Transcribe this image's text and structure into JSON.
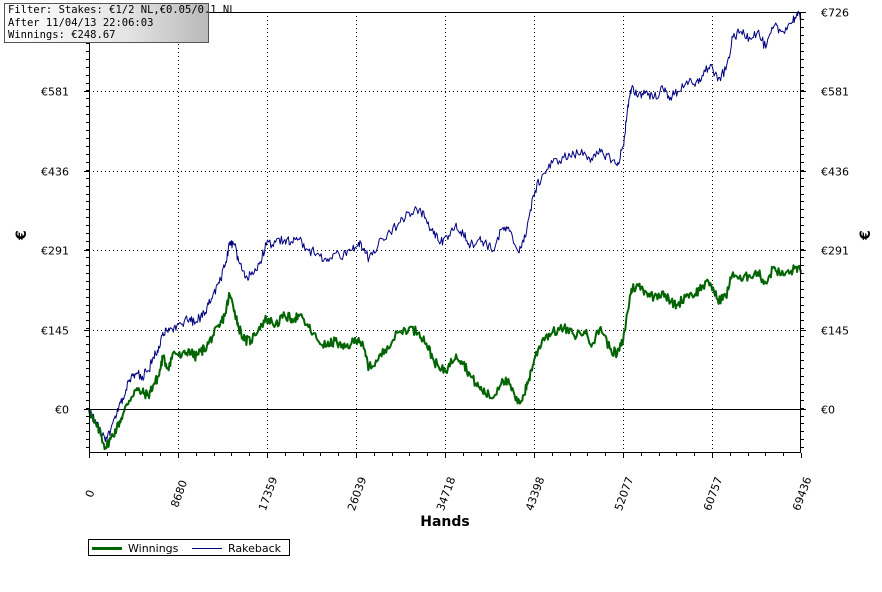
{
  "info_box": {
    "lines": [
      "Filter: Stakes: €1/2 NL,€0.05/0.1 NL",
      "After 11/04/13 22:06:03",
      "Winnings: €248.67"
    ]
  },
  "colors": {
    "winnings": "#006400",
    "rakeback": "#000080",
    "grid": "#000000",
    "frame": "#000000"
  },
  "chart_data": {
    "type": "line",
    "xlabel": "Hands",
    "ylabel": "€",
    "xlim": [
      0,
      69436
    ],
    "ylim": [
      -80,
      726
    ],
    "x_ticks": [
      0,
      8680,
      17359,
      26039,
      34718,
      43398,
      52077,
      60757,
      69436
    ],
    "x_tick_labels": [
      "0",
      "8680",
      "17359",
      "26039",
      "34718",
      "43398",
      "52077",
      "60757",
      "69436"
    ],
    "y_ticks": [
      0,
      145,
      291,
      436,
      581,
      726
    ],
    "y_tick_labels": [
      "€0",
      "€145",
      "€291",
      "€436",
      "€581",
      "€726"
    ],
    "grid": true,
    "legend_position": "bottom-left",
    "series": [
      {
        "name": "Winnings",
        "color": "#006400",
        "points": [
          [
            0,
            0
          ],
          [
            500,
            -25
          ],
          [
            1000,
            -40
          ],
          [
            1600,
            -70
          ],
          [
            2100,
            -55
          ],
          [
            2700,
            -35
          ],
          [
            3300,
            -10
          ],
          [
            3900,
            15
          ],
          [
            4500,
            35
          ],
          [
            5200,
            30
          ],
          [
            5800,
            25
          ],
          [
            6300,
            45
          ],
          [
            6800,
            60
          ],
          [
            7200,
            95
          ],
          [
            7700,
            75
          ],
          [
            8300,
            105
          ],
          [
            9000,
            95
          ],
          [
            9800,
            108
          ],
          [
            10300,
            95
          ],
          [
            10900,
            105
          ],
          [
            11500,
            115
          ],
          [
            12100,
            135
          ],
          [
            12700,
            150
          ],
          [
            13300,
            175
          ],
          [
            13700,
            210
          ],
          [
            14200,
            180
          ],
          [
            14600,
            150
          ],
          [
            15200,
            125
          ],
          [
            15800,
            125
          ],
          [
            16600,
            150
          ],
          [
            17300,
            165
          ],
          [
            18200,
            155
          ],
          [
            19100,
            170
          ],
          [
            19800,
            165
          ],
          [
            20500,
            170
          ],
          [
            21400,
            150
          ],
          [
            22300,
            125
          ],
          [
            23200,
            115
          ],
          [
            24000,
            125
          ],
          [
            24800,
            110
          ],
          [
            25600,
            120
          ],
          [
            26300,
            130
          ],
          [
            26800,
            110
          ],
          [
            27300,
            75
          ],
          [
            28200,
            90
          ],
          [
            29100,
            115
          ],
          [
            30200,
            140
          ],
          [
            31200,
            148
          ],
          [
            32200,
            140
          ],
          [
            32900,
            120
          ],
          [
            33600,
            90
          ],
          [
            34300,
            70
          ],
          [
            35000,
            75
          ],
          [
            35800,
            100
          ],
          [
            36500,
            85
          ],
          [
            37200,
            60
          ],
          [
            38000,
            40
          ],
          [
            38600,
            30
          ],
          [
            39400,
            20
          ],
          [
            40300,
            55
          ],
          [
            41000,
            45
          ],
          [
            41800,
            10
          ],
          [
            42400,
            25
          ],
          [
            42900,
            55
          ],
          [
            43500,
            95
          ],
          [
            44300,
            130
          ],
          [
            45200,
            140
          ],
          [
            46300,
            148
          ],
          [
            47300,
            135
          ],
          [
            48300,
            142
          ],
          [
            49100,
            120
          ],
          [
            49900,
            150
          ],
          [
            50800,
            110
          ],
          [
            51500,
            100
          ],
          [
            52100,
            125
          ],
          [
            52500,
            175
          ],
          [
            52900,
            220
          ],
          [
            53600,
            225
          ],
          [
            54300,
            215
          ],
          [
            55100,
            205
          ],
          [
            56000,
            215
          ],
          [
            56700,
            195
          ],
          [
            57400,
            190
          ],
          [
            58300,
            210
          ],
          [
            59100,
            210
          ],
          [
            59800,
            225
          ],
          [
            60600,
            230
          ],
          [
            61300,
            200
          ],
          [
            62100,
            205
          ],
          [
            62800,
            250
          ],
          [
            63600,
            235
          ],
          [
            64400,
            245
          ],
          [
            65200,
            250
          ],
          [
            66000,
            230
          ],
          [
            66800,
            260
          ],
          [
            67500,
            245
          ],
          [
            68400,
            250
          ],
          [
            69000,
            260
          ],
          [
            69436,
            249
          ]
        ]
      },
      {
        "name": "Rakeback",
        "color": "#000080",
        "points": [
          [
            0,
            0
          ],
          [
            500,
            -20
          ],
          [
            1000,
            -35
          ],
          [
            1600,
            -60
          ],
          [
            2100,
            -40
          ],
          [
            2700,
            -10
          ],
          [
            3300,
            20
          ],
          [
            3900,
            50
          ],
          [
            4500,
            65
          ],
          [
            5200,
            60
          ],
          [
            5800,
            70
          ],
          [
            6300,
            95
          ],
          [
            6800,
            115
          ],
          [
            7200,
            140
          ],
          [
            7700,
            140
          ],
          [
            8300,
            150
          ],
          [
            9000,
            155
          ],
          [
            9800,
            165
          ],
          [
            10300,
            155
          ],
          [
            10900,
            170
          ],
          [
            11500,
            185
          ],
          [
            12100,
            210
          ],
          [
            12700,
            230
          ],
          [
            13300,
            265
          ],
          [
            13700,
            300
          ],
          [
            14200,
            300
          ],
          [
            14600,
            270
          ],
          [
            15200,
            240
          ],
          [
            15800,
            245
          ],
          [
            16600,
            265
          ],
          [
            17300,
            300
          ],
          [
            18200,
            305
          ],
          [
            19100,
            310
          ],
          [
            19800,
            305
          ],
          [
            20500,
            310
          ],
          [
            21400,
            290
          ],
          [
            22300,
            285
          ],
          [
            23200,
            270
          ],
          [
            24000,
            285
          ],
          [
            24800,
            280
          ],
          [
            25600,
            290
          ],
          [
            26300,
            305
          ],
          [
            26800,
            290
          ],
          [
            27300,
            275
          ],
          [
            28200,
            300
          ],
          [
            29100,
            320
          ],
          [
            30200,
            340
          ],
          [
            31200,
            360
          ],
          [
            32200,
            365
          ],
          [
            32900,
            345
          ],
          [
            33600,
            320
          ],
          [
            34300,
            305
          ],
          [
            35000,
            310
          ],
          [
            35800,
            340
          ],
          [
            36500,
            320
          ],
          [
            37200,
            300
          ],
          [
            38000,
            310
          ],
          [
            38600,
            305
          ],
          [
            39400,
            290
          ],
          [
            40300,
            330
          ],
          [
            41000,
            325
          ],
          [
            41800,
            290
          ],
          [
            42400,
            305
          ],
          [
            42900,
            350
          ],
          [
            43500,
            400
          ],
          [
            44300,
            430
          ],
          [
            45200,
            450
          ],
          [
            46300,
            460
          ],
          [
            47300,
            465
          ],
          [
            48300,
            470
          ],
          [
            49100,
            455
          ],
          [
            49900,
            470
          ],
          [
            50800,
            460
          ],
          [
            51500,
            445
          ],
          [
            52100,
            480
          ],
          [
            52500,
            545
          ],
          [
            52900,
            585
          ],
          [
            53600,
            575
          ],
          [
            54300,
            580
          ],
          [
            55100,
            570
          ],
          [
            56000,
            585
          ],
          [
            56700,
            570
          ],
          [
            57400,
            580
          ],
          [
            58300,
            600
          ],
          [
            59100,
            590
          ],
          [
            59800,
            610
          ],
          [
            60600,
            630
          ],
          [
            61300,
            600
          ],
          [
            62100,
            620
          ],
          [
            62800,
            680
          ],
          [
            63600,
            690
          ],
          [
            64400,
            680
          ],
          [
            65200,
            690
          ],
          [
            66000,
            660
          ],
          [
            66800,
            700
          ],
          [
            67500,
            690
          ],
          [
            68400,
            705
          ],
          [
            69000,
            720
          ],
          [
            69436,
            716
          ]
        ]
      }
    ]
  }
}
